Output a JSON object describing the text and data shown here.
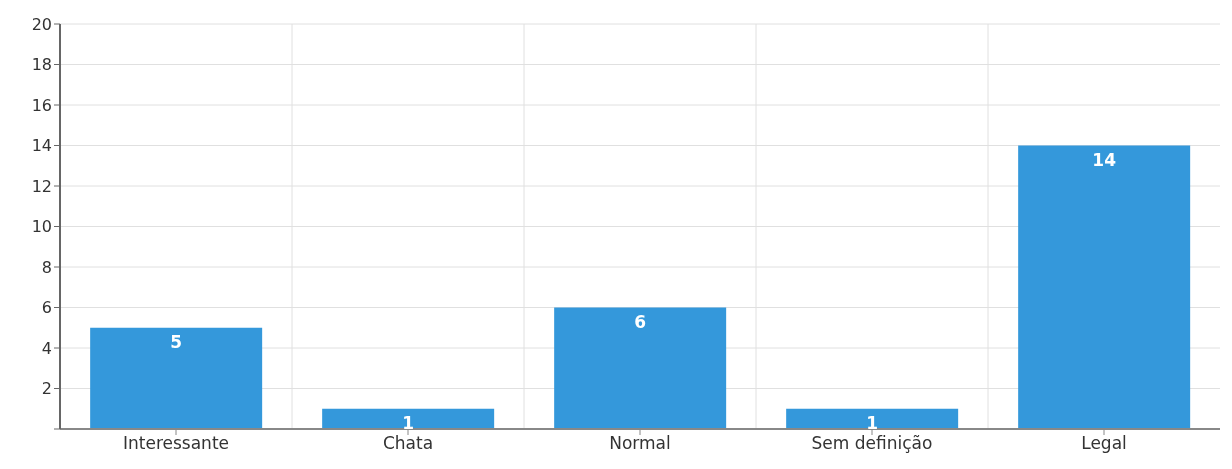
{
  "chart_data": {
    "type": "bar",
    "categories": [
      "Interessante",
      "Chata",
      "Normal",
      "Sem definição",
      "Legal"
    ],
    "values": [
      5,
      1,
      6,
      1,
      14
    ],
    "color": "#3498db",
    "ylim": [
      0,
      20
    ],
    "yticks": [
      {
        "value": 0,
        "label": null
      },
      2,
      4,
      6,
      8,
      10,
      12,
      14,
      16,
      18,
      20
    ],
    "grid": true,
    "data_labels": true
  }
}
